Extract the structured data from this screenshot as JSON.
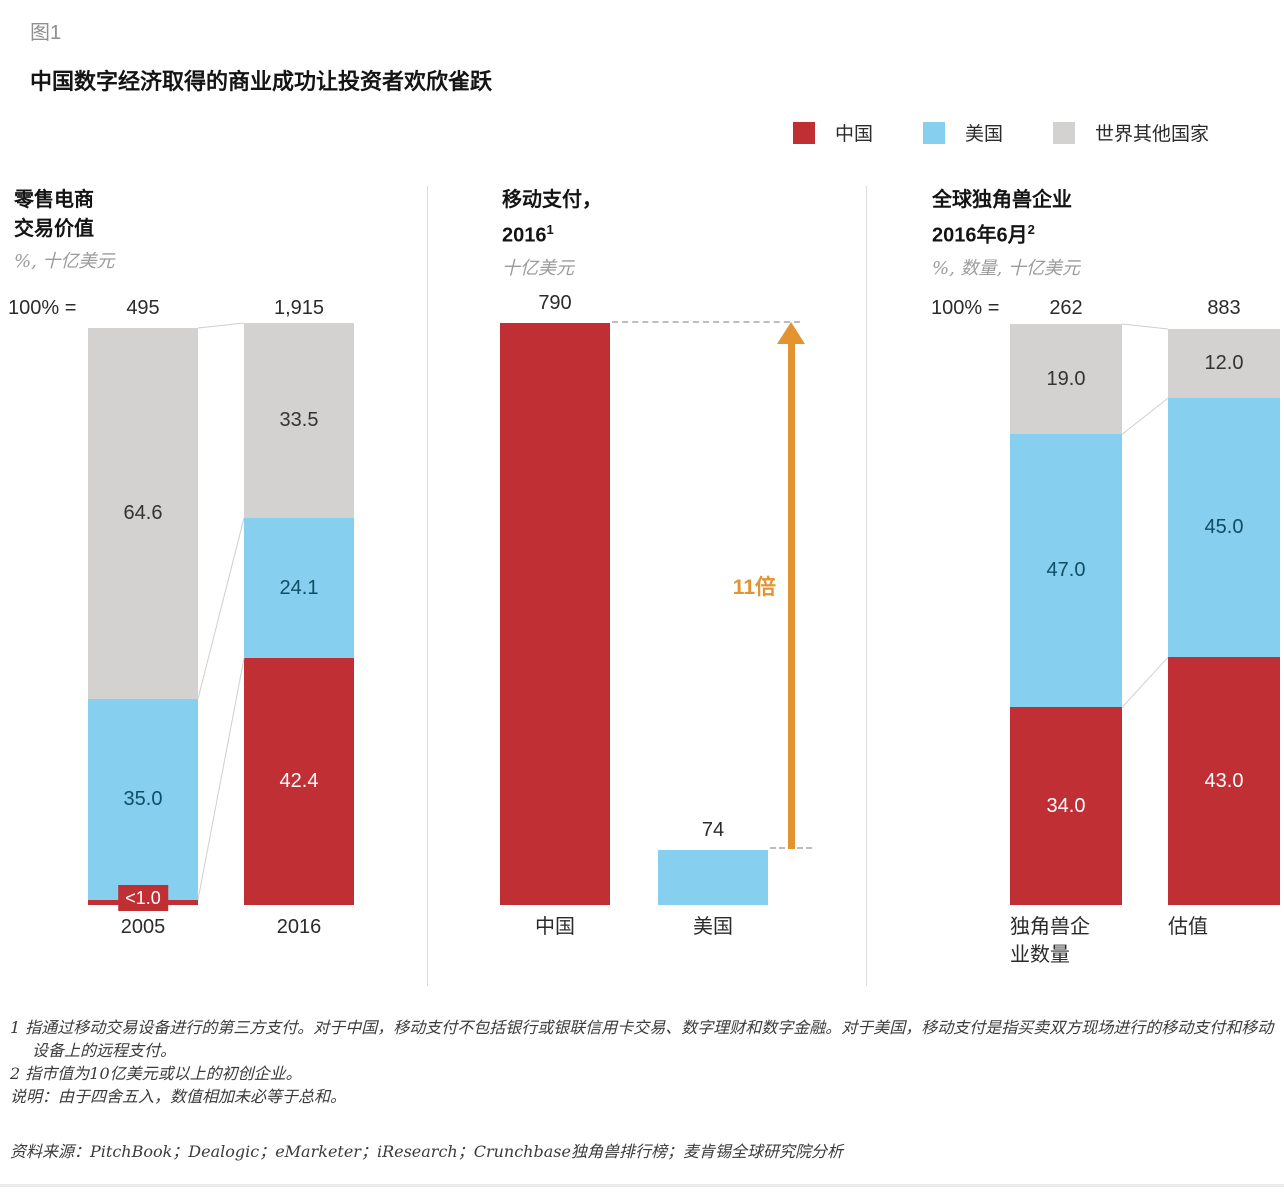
{
  "figure_label": "图1",
  "title": "中国数字经济取得的商业成功让投资者欢欣雀跃",
  "colors": {
    "china_red": "#bf2f34",
    "us_blue": "#87cfee",
    "rest_of_world_gray": "#d3d2d0",
    "accent_orange": "#e3932f",
    "blue_segment_text": "#0e4e66"
  },
  "legend": {
    "items": [
      {
        "label": "中国",
        "color": "#bf2f34"
      },
      {
        "label": "美国",
        "color": "#87cfee"
      },
      {
        "label": "世界其他国家",
        "color": "#d3d2d0"
      }
    ]
  },
  "chart_data": [
    {
      "type": "bar",
      "subtype": "stacked-100pct",
      "title_lines": [
        "零售电商",
        "交易价值"
      ],
      "unit_label": "%, 十亿美元",
      "total_prefix": "100% =",
      "categories": [
        "2005",
        "2016"
      ],
      "category_lines": [
        [
          "2005"
        ],
        [
          "2016"
        ]
      ],
      "totals": [
        495,
        1915
      ],
      "totals_display": [
        "495",
        "1,915"
      ],
      "stack_order": "top-to-bottom",
      "series": [
        {
          "name": "世界其他国家",
          "color": "#d3d2d0",
          "label_color": "#333333",
          "values": [
            64.6,
            33.5
          ],
          "display": [
            "64.6",
            "33.5"
          ]
        },
        {
          "name": "美国",
          "color": "#87cfee",
          "label_color": "#0e4e66",
          "values": [
            35.0,
            24.1
          ],
          "display": [
            "35.0",
            "24.1"
          ]
        },
        {
          "name": "中国",
          "color": "#bf2f34",
          "label_color": "#ffffff",
          "values": [
            0.9,
            42.4
          ],
          "display": [
            "<1.0",
            "42.4"
          ],
          "callout_cols": [
            0
          ]
        }
      ]
    },
    {
      "type": "bar",
      "subtype": "absolute",
      "title_lines": [
        "移动支付，",
        "2016"
      ],
      "title_superscript": "1",
      "unit_label": "十亿美元",
      "categories": [
        "中国",
        "美国"
      ],
      "category_lines": [
        [
          "中国"
        ],
        [
          "美国"
        ]
      ],
      "values": [
        790,
        74
      ],
      "values_display": [
        "790",
        "74"
      ],
      "bar_colors": [
        "#bf2f34",
        "#87cfee"
      ],
      "annotation": {
        "label": "11倍",
        "color": "#e3932f",
        "type": "multiplier-arrow"
      }
    },
    {
      "type": "bar",
      "subtype": "stacked-100pct",
      "title_lines": [
        "全球独角兽企业",
        "2016年6月"
      ],
      "title_superscript": "2",
      "unit_label": "%, 数量, 十亿美元",
      "total_prefix": "100% =",
      "categories": [
        "独角兽企业数量",
        "估值"
      ],
      "category_lines": [
        [
          "独角兽企",
          "业数量"
        ],
        [
          "估值"
        ]
      ],
      "totals": [
        262,
        883
      ],
      "totals_display": [
        "262",
        "883"
      ],
      "stack_order": "top-to-bottom",
      "series": [
        {
          "name": "世界其他国家",
          "color": "#d3d2d0",
          "label_color": "#333333",
          "values": [
            19.0,
            12.0
          ],
          "display": [
            "19.0",
            "12.0"
          ]
        },
        {
          "name": "美国",
          "color": "#87cfee",
          "label_color": "#0e4e66",
          "values": [
            47.0,
            45.0
          ],
          "display": [
            "47.0",
            "45.0"
          ]
        },
        {
          "name": "中国",
          "color": "#bf2f34",
          "label_color": "#ffffff",
          "values": [
            34.0,
            43.0
          ],
          "display": [
            "34.0",
            "43.0"
          ]
        }
      ]
    }
  ],
  "footnotes": [
    "1 指通过移动交易设备进行的第三方支付。对于中国，移动支付不包括银行或银联信用卡交易、数字理财和数字金融。对于美国，移动支付是指买卖双方现场进行的移动支付和移动设备上的远程支付。",
    "2 指市值为10亿美元或以上的初创企业。"
  ],
  "note": "说明：由于四舍五入，数值相加未必等于总和。",
  "source": "资料来源：PitchBook；Dealogic；eMarketer；iResearch；Crunchbase独角兽排行榜；麦肯锡全球研究院分析"
}
